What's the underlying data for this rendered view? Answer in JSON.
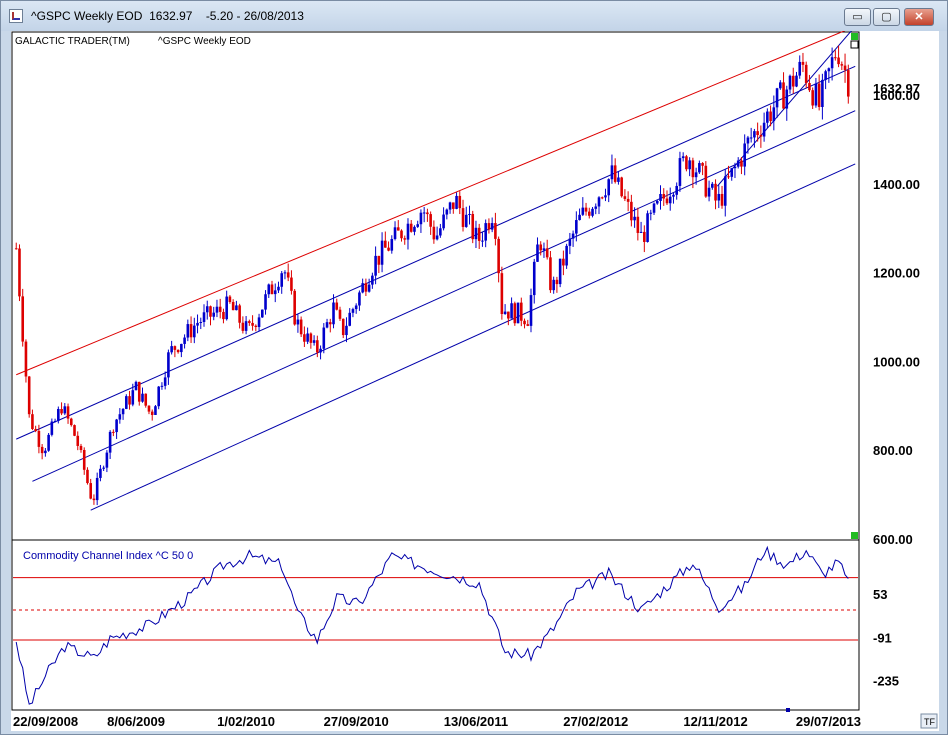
{
  "window": {
    "title": "^GSPC Weekly EOD  1632.97    -5.20 - 26/08/2013",
    "buttons": [
      "▭",
      "▢",
      "✕"
    ]
  },
  "chart_data": [
    {
      "type": "candlestick",
      "header_left": "GALACTIC TRADER(TM)",
      "header_right": "^GSPC Weekly EOD",
      "last_price_label": "1632.97",
      "last_price": 1632.97,
      "y_ticks": [
        "1600.00",
        "1400.00",
        "1200.00",
        "1000.00",
        "800.00",
        "600.00"
      ],
      "y_tick_values": [
        1600,
        1400,
        1200,
        1000,
        800,
        600
      ],
      "ylim": [
        600,
        1740
      ],
      "up_color": "#0000cc",
      "down_color": "#dd0000",
      "price_path": [
        {
          "date": "2008-09-22",
          "close": 1255
        },
        {
          "date": "2008-10-20",
          "close": 875
        },
        {
          "date": "2008-11-20",
          "close": 800
        },
        {
          "date": "2008-12-29",
          "close": 900
        },
        {
          "date": "2009-01-30",
          "close": 825
        },
        {
          "date": "2009-03-06",
          "close": 683
        },
        {
          "date": "2009-04-20",
          "close": 860
        },
        {
          "date": "2009-06-08",
          "close": 940
        },
        {
          "date": "2009-07-10",
          "close": 880
        },
        {
          "date": "2009-08-20",
          "close": 1020
        },
        {
          "date": "2009-10-20",
          "close": 1090
        },
        {
          "date": "2009-12-28",
          "close": 1125
        },
        {
          "date": "2010-02-05",
          "close": 1065
        },
        {
          "date": "2010-04-23",
          "close": 1215
        },
        {
          "date": "2010-05-20",
          "close": 1090
        },
        {
          "date": "2010-07-02",
          "close": 1020
        },
        {
          "date": "2010-08-09",
          "close": 1120
        },
        {
          "date": "2010-08-27",
          "close": 1065
        },
        {
          "date": "2010-11-05",
          "close": 1225
        },
        {
          "date": "2011-02-18",
          "close": 1345
        },
        {
          "date": "2011-03-18",
          "close": 1280
        },
        {
          "date": "2011-04-29",
          "close": 1365
        },
        {
          "date": "2011-06-17",
          "close": 1270
        },
        {
          "date": "2011-07-22",
          "close": 1345
        },
        {
          "date": "2011-08-08",
          "close": 1120
        },
        {
          "date": "2011-10-04",
          "close": 1100
        },
        {
          "date": "2011-10-28",
          "close": 1285
        },
        {
          "date": "2011-11-25",
          "close": 1160
        },
        {
          "date": "2012-01-20",
          "close": 1315
        },
        {
          "date": "2012-04-02",
          "close": 1420
        },
        {
          "date": "2012-06-04",
          "close": 1280
        },
        {
          "date": "2012-09-14",
          "close": 1465
        },
        {
          "date": "2012-11-16",
          "close": 1355
        },
        {
          "date": "2013-01-25",
          "close": 1500
        },
        {
          "date": "2013-05-20",
          "close": 1665
        },
        {
          "date": "2013-06-24",
          "close": 1575
        },
        {
          "date": "2013-08-02",
          "close": 1710
        },
        {
          "date": "2013-08-26",
          "close": 1632.97
        }
      ],
      "channel_lines": [
        {
          "color": "#dd0000",
          "points": [
            {
              "date": "2008-09-22",
              "value": 970
            },
            {
              "date": "2013-09-10",
              "value": 1755
            }
          ]
        },
        {
          "color": "#0000aa",
          "points": [
            {
              "date": "2008-09-22",
              "value": 825
            },
            {
              "date": "2013-09-10",
              "value": 1665
            }
          ]
        },
        {
          "color": "#0000aa",
          "points": [
            {
              "date": "2008-10-27",
              "value": 730
            },
            {
              "date": "2013-09-10",
              "value": 1565
            }
          ]
        },
        {
          "color": "#0000aa",
          "points": [
            {
              "date": "2009-03-02",
              "value": 665
            },
            {
              "date": "2013-09-10",
              "value": 1445
            }
          ]
        },
        {
          "color": "#0000aa",
          "points": [
            {
              "date": "2012-11-16",
              "value": 1395
            },
            {
              "date": "2013-09-10",
              "value": 1755
            }
          ]
        }
      ]
    },
    {
      "type": "line",
      "title": "Commodity Channel Index ^C 50 0",
      "line_color": "#0000aa",
      "y_ticks": [
        "53",
        "-91",
        "-235"
      ],
      "y_tick_values": [
        53,
        -91,
        -235
      ],
      "ylim": [
        -330,
        230
      ],
      "reference_lines": [
        {
          "value": 108,
          "style": "solid",
          "color": "#dd0000"
        },
        {
          "value": 0,
          "style": "dashed",
          "color": "#dd0000"
        },
        {
          "value": -100,
          "style": "solid",
          "color": "#dd0000"
        }
      ],
      "x_tick_labels": [
        "22/09/2008",
        "8/06/2009",
        "1/02/2010",
        "27/09/2010",
        "13/06/2011",
        "27/02/2012",
        "12/11/2012",
        "29/07/2013"
      ],
      "x_tick_dates": [
        "2008-09-22",
        "2009-06-08",
        "2010-02-01",
        "2010-09-27",
        "2011-06-13",
        "2012-02-27",
        "2012-11-12",
        "2013-07-29"
      ],
      "values": [
        {
          "date": "2008-09-22",
          "value": -100
        },
        {
          "date": "2008-10-20",
          "value": -320
        },
        {
          "date": "2008-11-24",
          "value": -220
        },
        {
          "date": "2009-01-05",
          "value": -120
        },
        {
          "date": "2009-03-09",
          "value": -160
        },
        {
          "date": "2009-04-13",
          "value": -95
        },
        {
          "date": "2009-07-06",
          "value": -50
        },
        {
          "date": "2009-09-28",
          "value": 40
        },
        {
          "date": "2009-12-14",
          "value": 150
        },
        {
          "date": "2010-02-08",
          "value": 180
        },
        {
          "date": "2010-04-19",
          "value": 150
        },
        {
          "date": "2010-05-24",
          "value": -10
        },
        {
          "date": "2010-07-05",
          "value": -100
        },
        {
          "date": "2010-08-16",
          "value": 40
        },
        {
          "date": "2010-10-04",
          "value": 20
        },
        {
          "date": "2010-12-13",
          "value": 180
        },
        {
          "date": "2011-03-21",
          "value": 130
        },
        {
          "date": "2011-06-20",
          "value": 90
        },
        {
          "date": "2011-08-15",
          "value": -140
        },
        {
          "date": "2011-10-10",
          "value": -150
        },
        {
          "date": "2011-11-28",
          "value": -60
        },
        {
          "date": "2012-01-16",
          "value": 60
        },
        {
          "date": "2012-03-26",
          "value": 120
        },
        {
          "date": "2012-06-04",
          "value": 0
        },
        {
          "date": "2012-08-20",
          "value": 110
        },
        {
          "date": "2012-09-24",
          "value": 160
        },
        {
          "date": "2012-11-19",
          "value": 10
        },
        {
          "date": "2013-01-14",
          "value": 80
        },
        {
          "date": "2013-02-25",
          "value": 200
        },
        {
          "date": "2013-04-15",
          "value": 150
        },
        {
          "date": "2013-05-27",
          "value": 200
        },
        {
          "date": "2013-07-01",
          "value": 120
        },
        {
          "date": "2013-08-05",
          "value": 160
        },
        {
          "date": "2013-08-26",
          "value": 90
        }
      ]
    }
  ],
  "footer": {
    "tf_label": "TF"
  }
}
